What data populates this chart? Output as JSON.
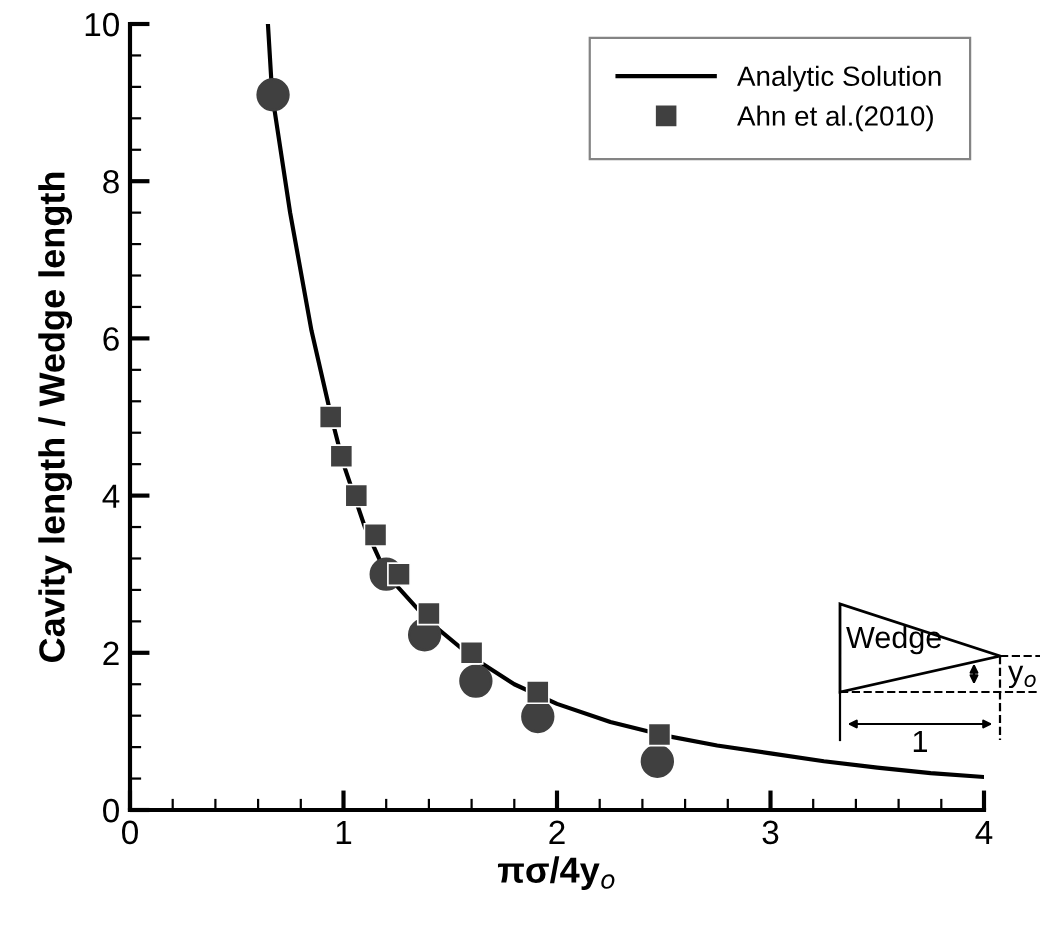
{
  "chart_data": {
    "type": "line",
    "xlabel": "πσ/4y$_{o}$",
    "ylabel": "Cavity length / Wedge length",
    "xlim": [
      0,
      4
    ],
    "ylim": [
      0,
      10
    ],
    "xticks": [
      0,
      {
        "value": 0.2,
        "label": null
      },
      {
        "value": 0.4,
        "label": null
      },
      {
        "value": 0.6,
        "label": null
      },
      {
        "value": 0.8,
        "label": null
      },
      1,
      {
        "value": 1.2,
        "label": null
      },
      {
        "value": 1.4,
        "label": null
      },
      {
        "value": 1.6,
        "label": null
      },
      {
        "value": 1.8,
        "label": null
      },
      2,
      {
        "value": 2.2,
        "label": null
      },
      {
        "value": 2.4,
        "label": null
      },
      {
        "value": 2.6,
        "label": null
      },
      {
        "value": 2.8,
        "label": null
      },
      3,
      {
        "value": 3.2,
        "label": null
      },
      {
        "value": 3.4,
        "label": null
      },
      {
        "value": 3.6,
        "label": null
      },
      {
        "value": 3.8,
        "label": null
      },
      4
    ],
    "yticks": [
      0,
      {
        "value": 0.4,
        "label": null
      },
      {
        "value": 0.8,
        "label": null
      },
      {
        "value": 1.2,
        "label": null
      },
      {
        "value": 1.6,
        "label": null
      },
      2,
      {
        "value": 2.4,
        "label": null
      },
      {
        "value": 2.8,
        "label": null
      },
      {
        "value": 3.2,
        "label": null
      },
      {
        "value": 3.6,
        "label": null
      },
      4,
      {
        "value": 4.4,
        "label": null
      },
      {
        "value": 4.8,
        "label": null
      },
      {
        "value": 5.2,
        "label": null
      },
      {
        "value": 5.6,
        "label": null
      },
      6,
      {
        "value": 6.4,
        "label": null
      },
      {
        "value": 6.8,
        "label": null
      },
      {
        "value": 7.2,
        "label": null
      },
      {
        "value": 7.6,
        "label": null
      },
      8,
      {
        "value": 8.4,
        "label": null
      },
      {
        "value": 8.8,
        "label": null
      },
      {
        "value": 9.2,
        "label": null
      },
      {
        "value": 9.6,
        "label": null
      },
      10
    ],
    "grid": false,
    "legend": "top right",
    "annotations": [
      "Wedge",
      "y$_{o}$",
      "1"
    ],
    "series": [
      {
        "name": "Analytic Solution",
        "color": "#000000",
        "marker": "none",
        "line_style": "solid",
        "x": [
          0.646,
          0.666,
          0.75,
          0.85,
          0.943,
          1.0,
          1.1,
          1.2,
          1.4,
          1.6,
          1.8,
          2.0,
          2.25,
          2.5,
          2.75,
          3.0,
          3.25,
          3.5,
          3.75,
          4.0
        ],
        "values": [
          10,
          9.1,
          7.6,
          6.1,
          5.0,
          4.4,
          3.6,
          3.0,
          2.4,
          1.95,
          1.6,
          1.35,
          1.12,
          0.95,
          0.82,
          0.72,
          0.62,
          0.54,
          0.47,
          0.42
        ]
      },
      {
        "name": "Ahn et al.(2010)",
        "type": "scatter",
        "color": "#404040",
        "marker": "square",
        "x": [
          0.94,
          0.99,
          1.06,
          1.15,
          1.26,
          1.4,
          1.6,
          1.91,
          2.48
        ],
        "values": [
          5.0,
          4.5,
          4.0,
          3.5,
          3.0,
          2.5,
          2.0,
          1.5,
          0.96
        ]
      },
      {
        "type": "scatter",
        "color": "#404040",
        "marker": "circle",
        "x": [
          0.67,
          1.2,
          1.38,
          1.62,
          1.91,
          2.47
        ],
        "values": [
          9.1,
          3.0,
          2.23,
          1.64,
          1.19,
          0.62
        ]
      }
    ]
  }
}
